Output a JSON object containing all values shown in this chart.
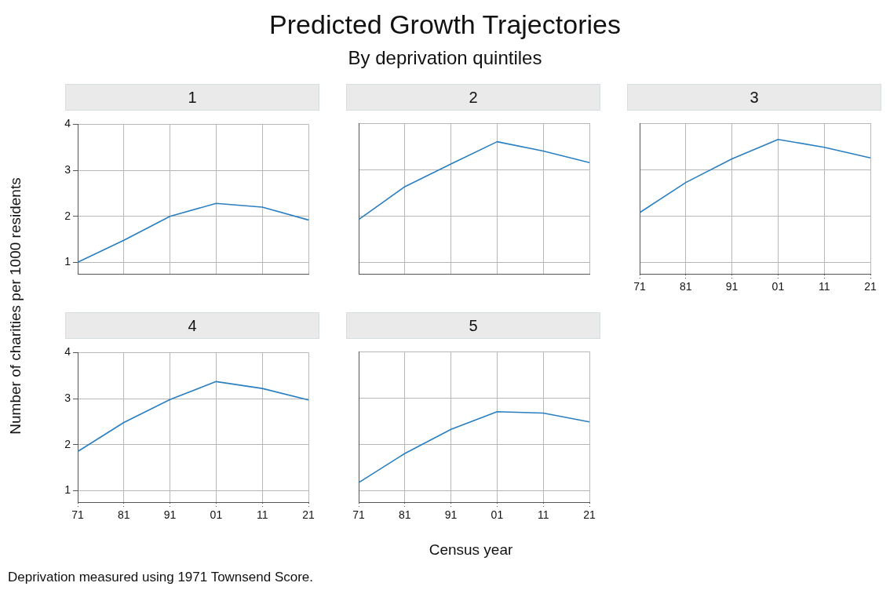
{
  "chart_data": [
    {
      "type": "other",
      "title": "Predicted Growth Trajectories",
      "subtitle": "By deprivation quintiles",
      "xlabel": "Census year",
      "ylabel": "Number of charities per 1000 residents",
      "annotations": [
        "Deprivation measured using 1971 Townsend Score."
      ]
    },
    {
      "type": "line",
      "title": "1",
      "categories": [
        "71",
        "81",
        "91",
        "01",
        "11",
        "21"
      ],
      "series": [
        {
          "color": "#2a7fc1",
          "values": [
            1.0,
            1.48,
            2.0,
            2.28,
            2.2,
            1.92
          ]
        }
      ],
      "ylim": [
        0.75,
        4
      ],
      "yticks": [
        1,
        2,
        3,
        4
      ],
      "grid": true,
      "marker": "none",
      "line_style": "solid",
      "tick_labels": "y"
    },
    {
      "type": "line",
      "title": "2",
      "categories": [
        "71",
        "81",
        "91",
        "01",
        "11",
        "21"
      ],
      "series": [
        {
          "color": "#2a7fc1",
          "values": [
            1.92,
            2.63,
            3.12,
            3.6,
            3.4,
            3.15
          ]
        }
      ],
      "ylim": [
        0.75,
        4
      ],
      "yticks": [
        1,
        2,
        3,
        4
      ],
      "grid": true,
      "marker": "none",
      "line_style": "solid",
      "tick_labels": false
    },
    {
      "type": "line",
      "title": "3",
      "categories": [
        "71",
        "81",
        "91",
        "01",
        "11",
        "21"
      ],
      "series": [
        {
          "color": "#2a7fc1",
          "values": [
            2.07,
            2.72,
            3.23,
            3.65,
            3.48,
            3.25
          ]
        }
      ],
      "ylim": [
        0.75,
        4
      ],
      "yticks": [
        1,
        2,
        3,
        4
      ],
      "grid": true,
      "marker": "none",
      "line_style": "solid",
      "tick_labels": "x"
    },
    {
      "type": "line",
      "title": "4",
      "categories": [
        "71",
        "81",
        "91",
        "01",
        "11",
        "21"
      ],
      "series": [
        {
          "color": "#2a7fc1",
          "values": [
            1.85,
            2.48,
            2.98,
            3.37,
            3.22,
            2.97
          ]
        }
      ],
      "ylim": [
        0.75,
        4
      ],
      "yticks": [
        1,
        2,
        3,
        4
      ],
      "grid": true,
      "marker": "none",
      "line_style": "solid"
    },
    {
      "type": "line",
      "title": "5",
      "categories": [
        "71",
        "81",
        "91",
        "01",
        "11",
        "21"
      ],
      "series": [
        {
          "color": "#2a7fc1",
          "values": [
            1.17,
            1.8,
            2.32,
            2.7,
            2.67,
            2.48
          ]
        }
      ],
      "ylim": [
        0.75,
        4
      ],
      "yticks": [
        1,
        2,
        3,
        4
      ],
      "grid": true,
      "marker": "none",
      "line_style": "solid",
      "tick_labels": "x"
    }
  ]
}
